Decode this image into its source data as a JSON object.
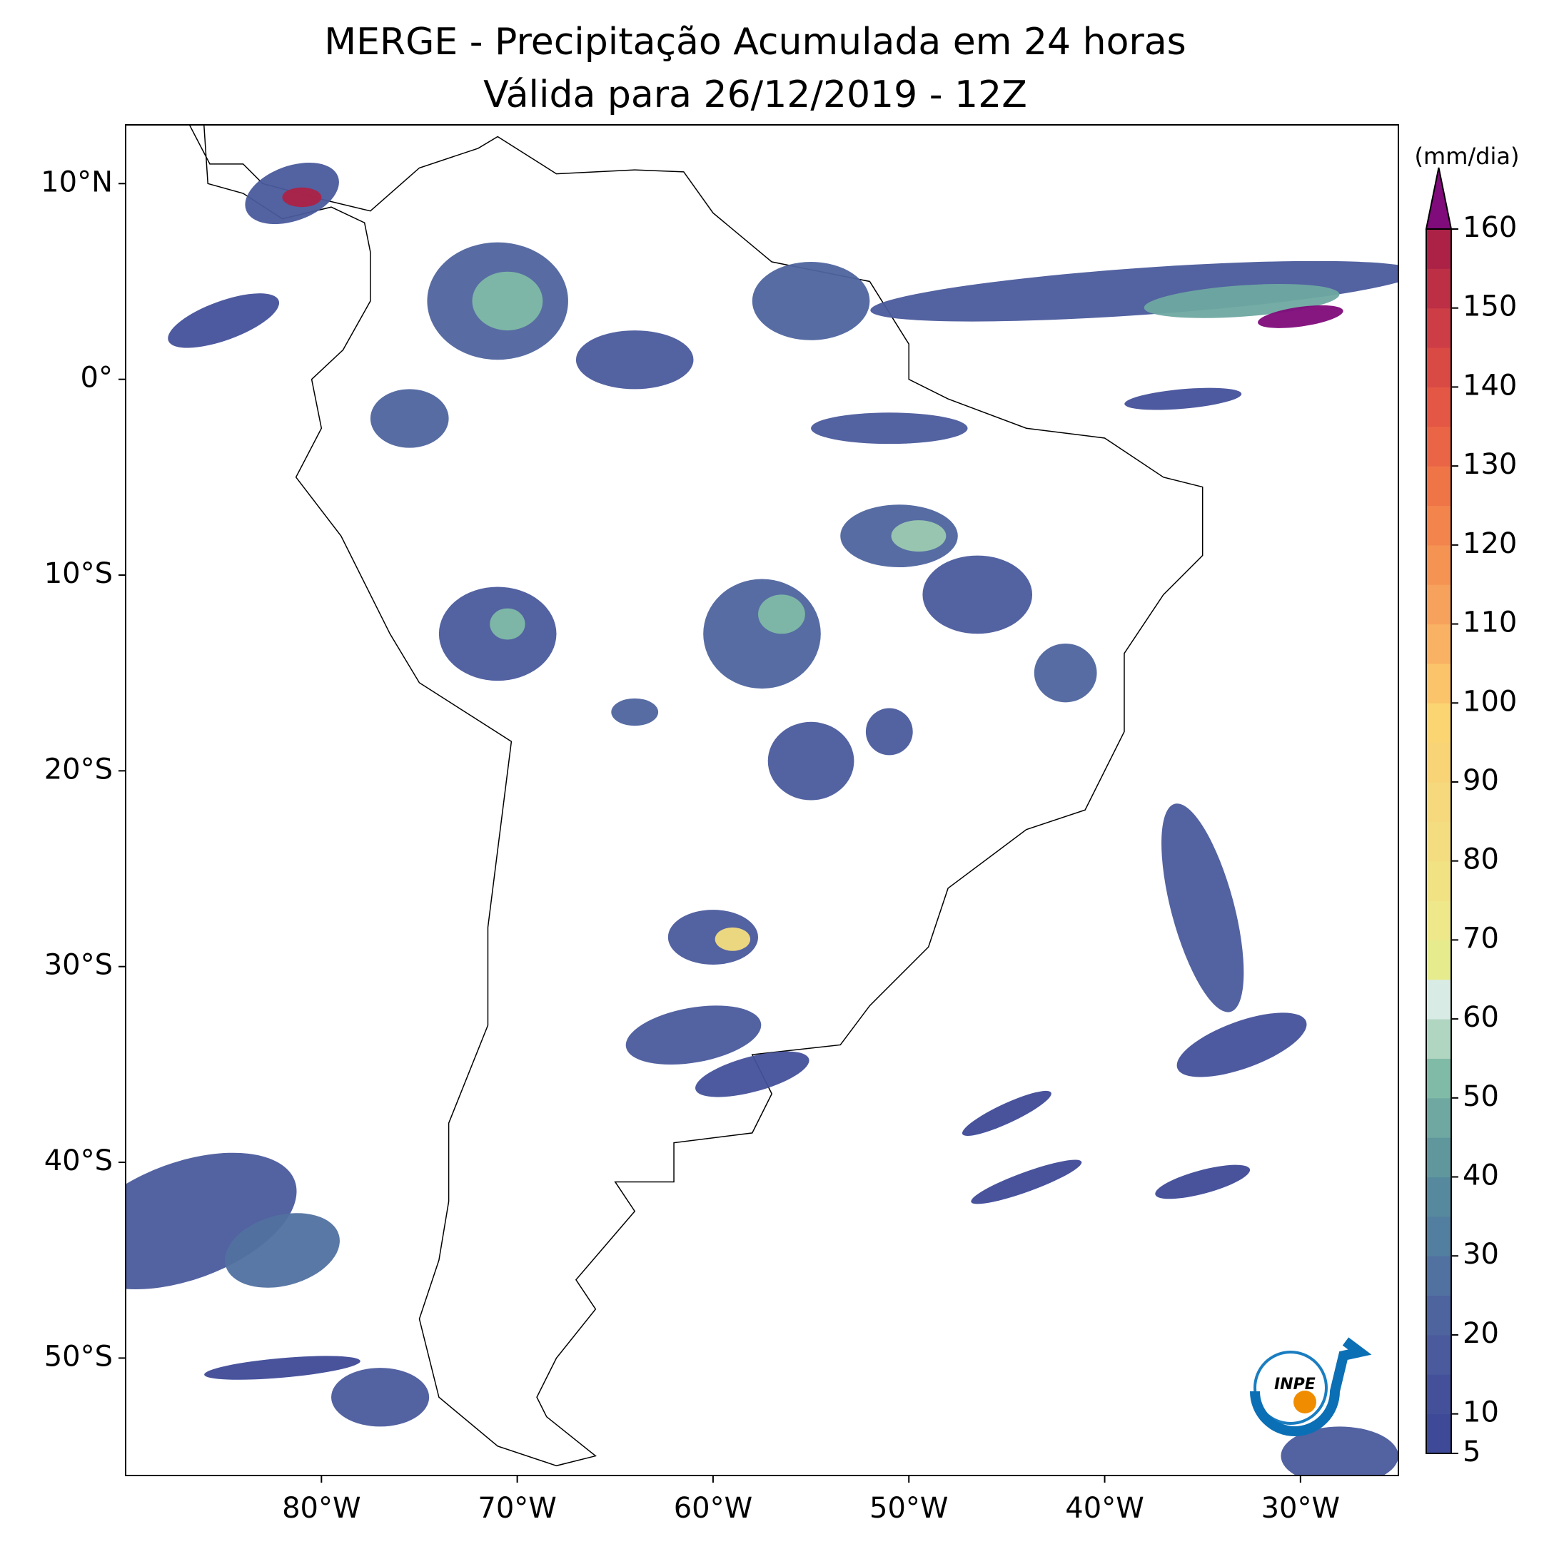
{
  "map": {
    "title": "MERGE - Precipitação Acumulada em 24 horas",
    "subtitle": "Válida para 26/12/2019 - 12Z",
    "xlim": [
      -90,
      -25
    ],
    "ylim": [
      -56,
      13
    ],
    "xticks": [
      {
        "value": -80,
        "label": "80°W"
      },
      {
        "value": -70,
        "label": "70°W"
      },
      {
        "value": -60,
        "label": "60°W"
      },
      {
        "value": -50,
        "label": "50°W"
      },
      {
        "value": -40,
        "label": "40°W"
      },
      {
        "value": -30,
        "label": "30°W"
      }
    ],
    "yticks": [
      {
        "value": 10,
        "label": "10°N"
      },
      {
        "value": 0,
        "label": "0°"
      },
      {
        "value": -10,
        "label": "10°S"
      },
      {
        "value": -20,
        "label": "20°S"
      },
      {
        "value": -30,
        "label": "30°S"
      },
      {
        "value": -40,
        "label": "40°S"
      },
      {
        "value": -50,
        "label": "50°S"
      }
    ],
    "colorbar": {
      "label": "(mm/dia)",
      "lim": [
        5,
        160
      ],
      "ticks": [
        5,
        10,
        20,
        30,
        40,
        50,
        60,
        70,
        80,
        90,
        100,
        110,
        120,
        130,
        140,
        150,
        160
      ],
      "colors": [
        "#3e4a97",
        "#44519a",
        "#4a5a9c",
        "#4e649e",
        "#5171a0",
        "#527ea0",
        "#56899e",
        "#5f979d",
        "#6ea8a1",
        "#80bba7",
        "#b0d6c2",
        "#d8ebe5",
        "#e6eb8d",
        "#eee88a",
        "#f1e284",
        "#f4dd80",
        "#f6d87d",
        "#f8d477",
        "#fad572",
        "#fbc46a",
        "#f9b163",
        "#f7a25c",
        "#f59353",
        "#f3844c",
        "#ef7547",
        "#ea6545",
        "#e35744",
        "#d94a44",
        "#cc3d45",
        "#bd2f45",
        "#ac2246"
      ],
      "extend_color": "#800b7a"
    },
    "logo": "INPE"
  }
}
